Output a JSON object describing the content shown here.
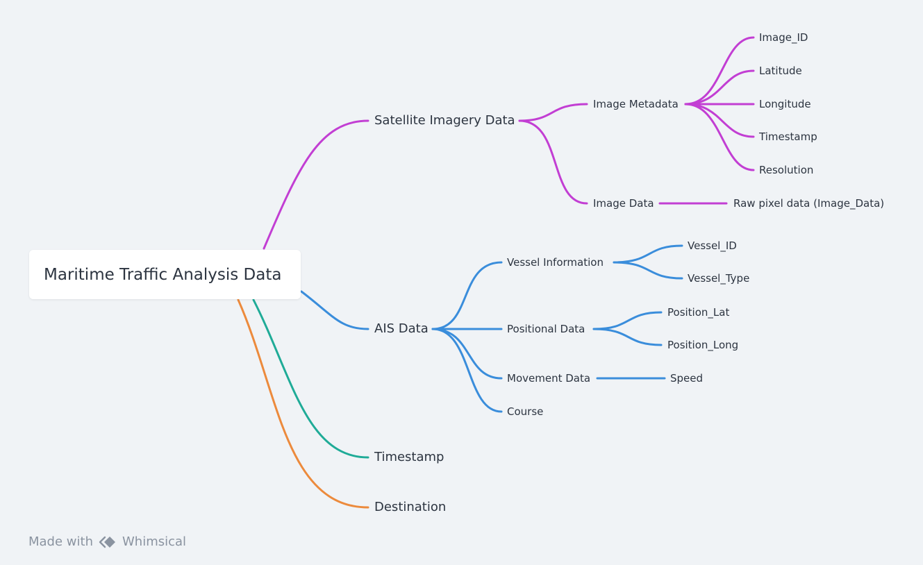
{
  "root": {
    "label": "Maritime Traffic Analysis Data"
  },
  "colors": {
    "purple": "#c23ed3",
    "blue": "#3a8ddb",
    "teal": "#1fab97",
    "orange": "#ec8a3c"
  },
  "branches": {
    "satellite": {
      "label": "Satellite Imagery Data",
      "metadata": {
        "label": "Image Metadata",
        "fields": [
          "Image_ID",
          "Latitude",
          "Longitude",
          "Timestamp",
          "Resolution"
        ]
      },
      "image_data": {
        "label": "Image Data",
        "child": "Raw pixel data (Image_Data)"
      }
    },
    "ais": {
      "label": "AIS Data",
      "vessel": {
        "label": "Vessel Information",
        "fields": [
          "Vessel_ID",
          "Vessel_Type"
        ]
      },
      "positional": {
        "label": "Positional Data",
        "fields": [
          "Position_Lat",
          "Position_Long"
        ]
      },
      "movement": {
        "label": "Movement Data",
        "child": "Speed"
      },
      "course": {
        "label": "Course"
      }
    },
    "timestamp": {
      "label": "Timestamp"
    },
    "destination": {
      "label": "Destination"
    }
  },
  "footer": {
    "made_with": "Made with",
    "brand": "Whimsical",
    "logo_icon": "whimsical-logo-icon"
  }
}
